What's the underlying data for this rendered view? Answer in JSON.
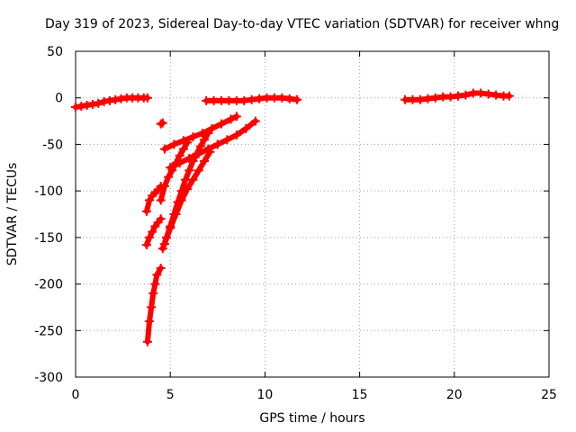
{
  "chart_data": {
    "type": "scatter",
    "title": "Day 319 of 2023, Sidereal Day-to-day VTEC variation (SDTVAR) for receiver whng",
    "xlabel": "GPS time / hours",
    "ylabel": "SDTVAR / TECUs",
    "xlim": [
      0,
      25
    ],
    "ylim": [
      -300,
      50
    ],
    "xticks": [
      0,
      5,
      10,
      15,
      20,
      25
    ],
    "yticks": [
      50,
      0,
      -50,
      -100,
      -150,
      -200,
      -250,
      -300
    ],
    "grid": true,
    "marker_color": "#ff0000",
    "series": [
      {
        "points": [
          [
            0.0,
            -10
          ],
          [
            0.3,
            -9
          ],
          [
            0.6,
            -8
          ],
          [
            0.9,
            -7
          ],
          [
            1.2,
            -6
          ],
          [
            1.5,
            -4
          ],
          [
            1.8,
            -3
          ],
          [
            2.1,
            -2
          ],
          [
            2.4,
            -1
          ],
          [
            2.7,
            0
          ],
          [
            3.0,
            0
          ],
          [
            3.3,
            0
          ],
          [
            3.6,
            0
          ],
          [
            3.8,
            0
          ]
        ]
      },
      {
        "points": [
          [
            4.5,
            -28
          ],
          [
            4.6,
            -27
          ]
        ]
      },
      {
        "points": [
          [
            3.8,
            -262
          ],
          [
            3.9,
            -240
          ],
          [
            4.0,
            -225
          ],
          [
            4.1,
            -210
          ],
          [
            4.2,
            -200
          ],
          [
            4.3,
            -190
          ],
          [
            4.5,
            -183
          ]
        ]
      },
      {
        "points": [
          [
            3.75,
            -158
          ],
          [
            3.9,
            -150
          ],
          [
            4.05,
            -144
          ],
          [
            4.2,
            -138
          ],
          [
            4.35,
            -134
          ],
          [
            4.5,
            -130
          ]
        ]
      },
      {
        "points": [
          [
            3.75,
            -122
          ],
          [
            3.9,
            -110
          ],
          [
            4.05,
            -105
          ],
          [
            4.2,
            -102
          ],
          [
            4.35,
            -99
          ],
          [
            4.5,
            -95
          ]
        ]
      },
      {
        "points": [
          [
            4.6,
            -162
          ],
          [
            4.8,
            -150
          ],
          [
            5.0,
            -138
          ],
          [
            5.2,
            -125
          ],
          [
            5.4,
            -112
          ],
          [
            5.6,
            -100
          ],
          [
            5.8,
            -88
          ],
          [
            6.0,
            -78
          ],
          [
            6.2,
            -68
          ],
          [
            6.4,
            -60
          ],
          [
            6.6,
            -52
          ],
          [
            6.8,
            -45
          ],
          [
            7.0,
            -38
          ]
        ]
      },
      {
        "points": [
          [
            4.7,
            -157
          ],
          [
            5.0,
            -140
          ],
          [
            5.3,
            -125
          ],
          [
            5.6,
            -110
          ],
          [
            5.9,
            -98
          ],
          [
            6.2,
            -88
          ],
          [
            6.5,
            -78
          ],
          [
            6.8,
            -68
          ],
          [
            7.1,
            -58
          ]
        ]
      },
      {
        "points": [
          [
            4.5,
            -110
          ],
          [
            4.7,
            -95
          ],
          [
            4.9,
            -85
          ],
          [
            5.1,
            -78
          ],
          [
            5.3,
            -70
          ],
          [
            5.5,
            -62
          ],
          [
            5.7,
            -55
          ],
          [
            5.9,
            -48
          ]
        ]
      },
      {
        "points": [
          [
            4.7,
            -55
          ],
          [
            5.2,
            -50
          ],
          [
            5.7,
            -46
          ],
          [
            6.2,
            -42
          ],
          [
            6.7,
            -38
          ],
          [
            7.2,
            -33
          ],
          [
            7.7,
            -28
          ],
          [
            8.2,
            -23
          ],
          [
            8.5,
            -20
          ]
        ]
      },
      {
        "points": [
          [
            5.0,
            -75
          ],
          [
            5.5,
            -70
          ],
          [
            6.0,
            -65
          ],
          [
            6.5,
            -60
          ],
          [
            7.0,
            -55
          ],
          [
            7.5,
            -50
          ],
          [
            8.0,
            -45
          ],
          [
            8.5,
            -40
          ],
          [
            9.0,
            -33
          ],
          [
            9.5,
            -25
          ]
        ]
      },
      {
        "points": [
          [
            6.9,
            -3
          ],
          [
            7.3,
            -3
          ],
          [
            7.7,
            -3
          ],
          [
            8.1,
            -3
          ],
          [
            8.5,
            -3
          ],
          [
            8.9,
            -3
          ],
          [
            9.3,
            -2
          ],
          [
            9.7,
            -1
          ],
          [
            10.1,
            0
          ],
          [
            10.5,
            0
          ],
          [
            10.9,
            0
          ],
          [
            11.3,
            -1
          ],
          [
            11.7,
            -2
          ]
        ]
      },
      {
        "points": [
          [
            17.4,
            -2
          ],
          [
            17.8,
            -2
          ],
          [
            18.2,
            -2
          ],
          [
            18.6,
            -1
          ],
          [
            19.0,
            0
          ],
          [
            19.4,
            1
          ],
          [
            19.8,
            1
          ],
          [
            20.2,
            2
          ],
          [
            20.6,
            3
          ],
          [
            21.0,
            5
          ],
          [
            21.4,
            5
          ],
          [
            21.8,
            4
          ],
          [
            22.2,
            3
          ],
          [
            22.6,
            2
          ],
          [
            22.9,
            2
          ]
        ]
      }
    ]
  }
}
